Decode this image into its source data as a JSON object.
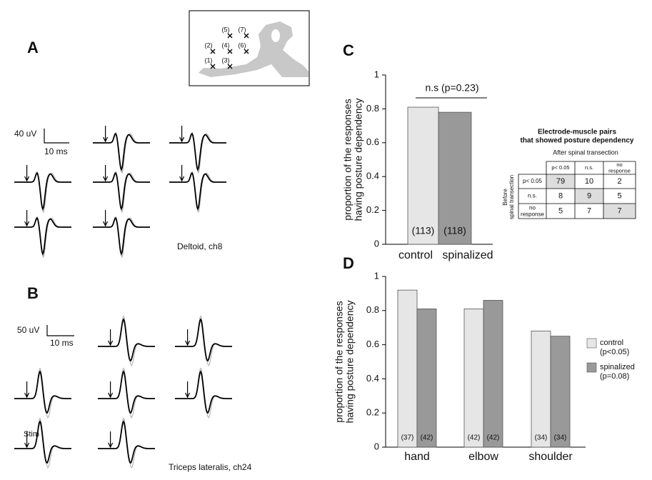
{
  "panels": {
    "A": {
      "label": "A",
      "scale_y": "40 uV",
      "scale_x": "10 ms",
      "caption": "Deltoid, ch8",
      "electrodes": [
        "(1)",
        "(2)",
        "(3)",
        "(4)",
        "(5)",
        "(6)",
        "(7)"
      ]
    },
    "B": {
      "label": "B",
      "scale_y": "50 uV",
      "scale_x": "10 ms",
      "stim": "Stim",
      "caption": "Triceps lateralis, ch24"
    },
    "C": {
      "label": "C"
    },
    "D": {
      "label": "D"
    }
  },
  "chart_data": [
    {
      "type": "bar",
      "categories": [
        "control",
        "spinalized"
      ],
      "values": [
        0.81,
        0.78
      ],
      "colors": [
        "#e6e6e6",
        "#999999"
      ],
      "n_labels": [
        "(113)",
        "(118)"
      ],
      "y_label": [
        "proportion of the responses",
        "having posture dependency"
      ],
      "annotation": "n.s (p=0.23)",
      "ylim": [
        0,
        1
      ],
      "yticks": [
        0,
        0.2,
        0.4,
        0.6,
        0.8,
        1
      ]
    },
    {
      "type": "grouped_bar",
      "categories": [
        "hand",
        "elbow",
        "shoulder"
      ],
      "series": [
        {
          "name": "control",
          "note": "(p<0.05)",
          "color": "#e6e6e6",
          "values": [
            0.92,
            0.81,
            0.68
          ],
          "n_labels": [
            "(37)",
            "(42)",
            "(34)"
          ]
        },
        {
          "name": "spinalized",
          "note": "(p=0.08)",
          "color": "#999999",
          "values": [
            0.81,
            0.86,
            0.65
          ],
          "n_labels": [
            "(42)",
            "(42)",
            "(34)"
          ]
        }
      ],
      "y_label": [
        "proportion of the responses",
        "having posture dependency"
      ],
      "ylim": [
        0,
        1
      ],
      "yticks": [
        0,
        0.2,
        0.4,
        0.6,
        0.8,
        1
      ],
      "legend": "right"
    }
  ],
  "table": {
    "title": [
      "Electrode-muscle pairs",
      "that showed posture dependency"
    ],
    "col_header": "After spinal transection",
    "row_header": [
      "Before",
      "spinal transection"
    ],
    "columns": [
      "p< 0.05",
      "n.s.",
      "no response"
    ],
    "rows": [
      {
        "label": "p< 0.05",
        "cells": [
          "79",
          "10",
          "2"
        ]
      },
      {
        "label": "n.s.",
        "cells": [
          "8",
          "9",
          "5"
        ]
      },
      {
        "label": "no response",
        "cells": [
          "5",
          "7",
          "7"
        ]
      }
    ]
  }
}
